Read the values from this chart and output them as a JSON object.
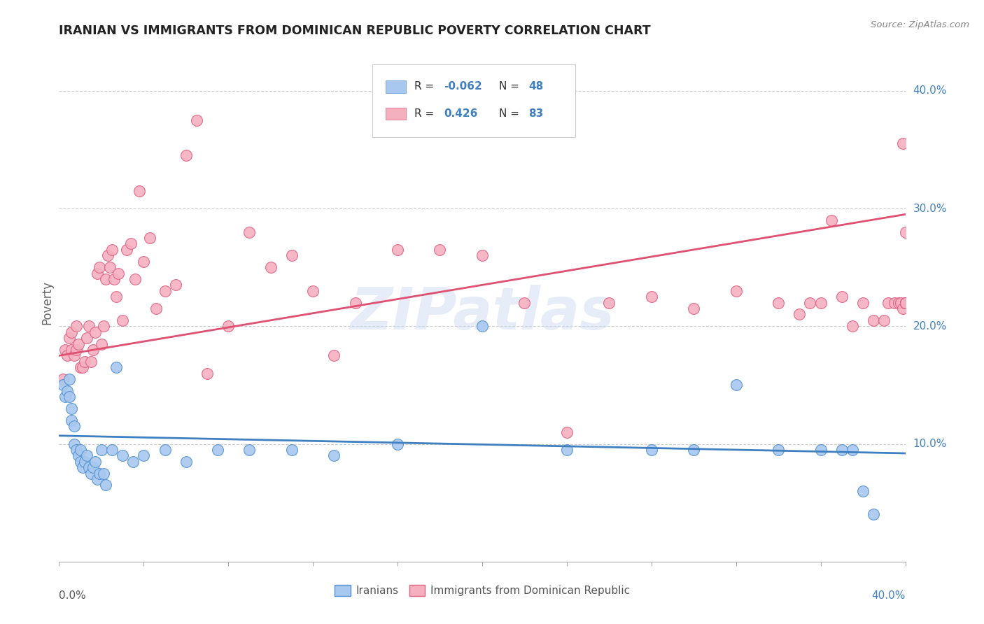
{
  "title": "IRANIAN VS IMMIGRANTS FROM DOMINICAN REPUBLIC POVERTY CORRELATION CHART",
  "source": "Source: ZipAtlas.com",
  "ylabel": "Poverty",
  "x_min": 0.0,
  "x_max": 0.4,
  "y_min": 0.0,
  "y_max": 0.44,
  "yticks": [
    0.1,
    0.2,
    0.3,
    0.4
  ],
  "ytick_labels": [
    "10.0%",
    "20.0%",
    "30.0%",
    "40.0%"
  ],
  "blue_color": "#a8c8f0",
  "pink_color": "#f5b0c0",
  "blue_edge_color": "#5090d0",
  "pink_edge_color": "#e06080",
  "blue_line_color": "#4080c0",
  "pink_line_color": "#e05070",
  "legend_label_blue": "Iranians",
  "legend_label_pink": "Immigrants from Dominican Republic",
  "blue_scatter_x": [
    0.002,
    0.003,
    0.004,
    0.005,
    0.005,
    0.006,
    0.006,
    0.007,
    0.007,
    0.008,
    0.009,
    0.01,
    0.01,
    0.011,
    0.012,
    0.013,
    0.014,
    0.015,
    0.016,
    0.017,
    0.018,
    0.019,
    0.02,
    0.021,
    0.022,
    0.025,
    0.027,
    0.03,
    0.035,
    0.04,
    0.05,
    0.06,
    0.075,
    0.09,
    0.11,
    0.13,
    0.16,
    0.2,
    0.24,
    0.28,
    0.3,
    0.32,
    0.34,
    0.36,
    0.37,
    0.375,
    0.38,
    0.385
  ],
  "blue_scatter_y": [
    0.15,
    0.14,
    0.145,
    0.155,
    0.14,
    0.13,
    0.12,
    0.1,
    0.115,
    0.095,
    0.09,
    0.085,
    0.095,
    0.08,
    0.085,
    0.09,
    0.08,
    0.075,
    0.08,
    0.085,
    0.07,
    0.075,
    0.095,
    0.075,
    0.065,
    0.095,
    0.165,
    0.09,
    0.085,
    0.09,
    0.095,
    0.085,
    0.095,
    0.095,
    0.095,
    0.09,
    0.1,
    0.2,
    0.095,
    0.095,
    0.095,
    0.15,
    0.095,
    0.095,
    0.095,
    0.095,
    0.06,
    0.04
  ],
  "pink_scatter_x": [
    0.002,
    0.003,
    0.004,
    0.005,
    0.006,
    0.006,
    0.007,
    0.008,
    0.008,
    0.009,
    0.01,
    0.011,
    0.012,
    0.013,
    0.014,
    0.015,
    0.016,
    0.017,
    0.018,
    0.019,
    0.02,
    0.021,
    0.022,
    0.023,
    0.024,
    0.025,
    0.026,
    0.027,
    0.028,
    0.03,
    0.032,
    0.034,
    0.036,
    0.038,
    0.04,
    0.043,
    0.046,
    0.05,
    0.055,
    0.06,
    0.065,
    0.07,
    0.08,
    0.09,
    0.1,
    0.11,
    0.12,
    0.13,
    0.14,
    0.16,
    0.18,
    0.2,
    0.22,
    0.24,
    0.26,
    0.28,
    0.3,
    0.32,
    0.34,
    0.35,
    0.355,
    0.36,
    0.365,
    0.37,
    0.375,
    0.38,
    0.385,
    0.39,
    0.392,
    0.395,
    0.397,
    0.398,
    0.399,
    0.399,
    0.4,
    0.4,
    0.4,
    0.4,
    0.4,
    0.4,
    0.4,
    0.4,
    0.4
  ],
  "pink_scatter_y": [
    0.155,
    0.18,
    0.175,
    0.19,
    0.18,
    0.195,
    0.175,
    0.18,
    0.2,
    0.185,
    0.165,
    0.165,
    0.17,
    0.19,
    0.2,
    0.17,
    0.18,
    0.195,
    0.245,
    0.25,
    0.185,
    0.2,
    0.24,
    0.26,
    0.25,
    0.265,
    0.24,
    0.225,
    0.245,
    0.205,
    0.265,
    0.27,
    0.24,
    0.315,
    0.255,
    0.275,
    0.215,
    0.23,
    0.235,
    0.345,
    0.375,
    0.16,
    0.2,
    0.28,
    0.25,
    0.26,
    0.23,
    0.175,
    0.22,
    0.265,
    0.265,
    0.26,
    0.22,
    0.11,
    0.22,
    0.225,
    0.215,
    0.23,
    0.22,
    0.21,
    0.22,
    0.22,
    0.29,
    0.225,
    0.2,
    0.22,
    0.205,
    0.205,
    0.22,
    0.22,
    0.22,
    0.22,
    0.355,
    0.215,
    0.22,
    0.28,
    0.22,
    0.22,
    0.22,
    0.22,
    0.22,
    0.22,
    0.22
  ],
  "blue_line_y_start": 0.107,
  "blue_line_y_end": 0.092,
  "pink_line_y_start": 0.175,
  "pink_line_y_end": 0.295,
  "watermark": "ZIPatlas",
  "background_color": "#ffffff",
  "grid_color": "#cccccc"
}
